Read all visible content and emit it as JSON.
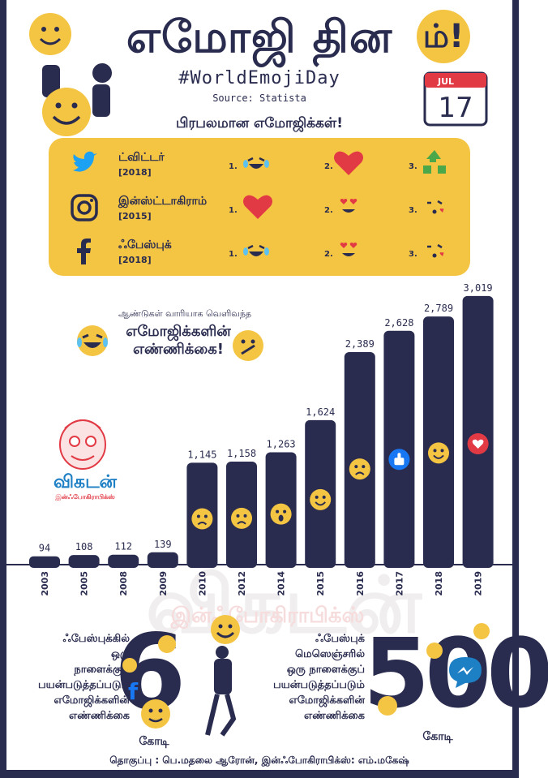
{
  "header": {
    "title": "எமோஜி தின",
    "title_badge": "ம்!",
    "hashtag": "#WorldEmojiDay",
    "source": "Source: Statista",
    "calendar_month": "JUL",
    "calendar_day": "17"
  },
  "popular": {
    "title": "பிரபலமான எமோஜிக்கள்!",
    "platforms": [
      {
        "name": "ட்விட்டர்",
        "year": "[2018]",
        "icon": "twitter-bird-icon",
        "ranks": [
          "1.",
          "2.",
          "3."
        ],
        "emojis": [
          "tears-of-joy-emoji",
          "red-heart-emoji",
          "recycle-emoji"
        ]
      },
      {
        "name": "இன்ஸ்ட்டாகிராம்",
        "year": "[2015]",
        "icon": "instagram-camera-icon",
        "ranks": [
          "1.",
          "2.",
          "3."
        ],
        "emojis": [
          "red-heart-emoji",
          "heart-eyes-emoji",
          "blowing-kiss-emoji"
        ]
      },
      {
        "name": "ஃபேஸ்புக்",
        "year": "[2018]",
        "icon": "facebook-f-icon",
        "ranks": [
          "1.",
          "2.",
          "3."
        ],
        "emojis": [
          "tears-of-joy-emoji",
          "heart-eyes-emoji",
          "blowing-kiss-emoji"
        ]
      }
    ]
  },
  "chart_note": {
    "line1": "ஆண்டுகள் வாரியாக வெளிவந்த",
    "line2": "எமோஜிக்களின்",
    "line3": "எண்ணிக்கை!"
  },
  "logo": {
    "name": "விகடன்",
    "sub": "இன்ஃபோகிராபிக்ஸ்"
  },
  "watermark": {
    "big": "விகடன்",
    "sub": "இன்ஃபோகிராபிக்ஸ்"
  },
  "chart_data": {
    "type": "bar",
    "categories": [
      "2003",
      "2005",
      "2008",
      "2009",
      "2010",
      "2012",
      "2014",
      "2015",
      "2016",
      "2017",
      "2018",
      "2019"
    ],
    "values": [
      94,
      108,
      112,
      139,
      1145,
      1158,
      1263,
      1624,
      2389,
      2628,
      2789,
      3019
    ],
    "data_labels": [
      "94",
      "108",
      "112",
      "139",
      "1,145",
      "1,158",
      "1,263",
      "1,624",
      "2,389",
      "2,628",
      "2,789",
      "3,019"
    ],
    "bar_emojis": [
      "",
      "",
      "",
      "",
      "sad-emoji",
      "worried-emoji",
      "surprised-emoji",
      "grinning-emoji",
      "angry-emoji",
      "like-thumbs-up-icon",
      "grinning-emoji",
      "heart-icon"
    ],
    "ylim": [
      0,
      3100
    ],
    "grid": false,
    "colors": {
      "bar": "#2a2c4f",
      "emoji": "#f4c443"
    }
  },
  "facebook_stat": {
    "text_lines": [
      "ஃபேஸ்புக்கில்",
      "ஒரு",
      "நாளைக்குப்",
      "பயன்படுத்தப்படும்",
      "எமோஜிக்களின்",
      "எண்ணிக்கை"
    ],
    "value": "6",
    "unit": "கோடி"
  },
  "messenger_stat": {
    "text_lines": [
      "ஃபேஸ்புக்",
      "மெஸெஞ்சரில்",
      "ஒரு நாளைக்குப்",
      "பயன்படுத்தப்படும்",
      "எமோஜிக்களின்",
      "எண்ணிக்கை"
    ],
    "value": "500",
    "unit": "கோடி"
  },
  "credit": "தொகுப்பு : பெ.மதலை ஆரோன், இன்ஃபோகிராபிக்ஸ்: எம்.மகேஷ்",
  "colors": {
    "navy": "#2a2c4f",
    "yellow": "#f4c443",
    "red": "#e23a45",
    "twitter": "#1da1f2",
    "facebook": "#1877f2"
  }
}
